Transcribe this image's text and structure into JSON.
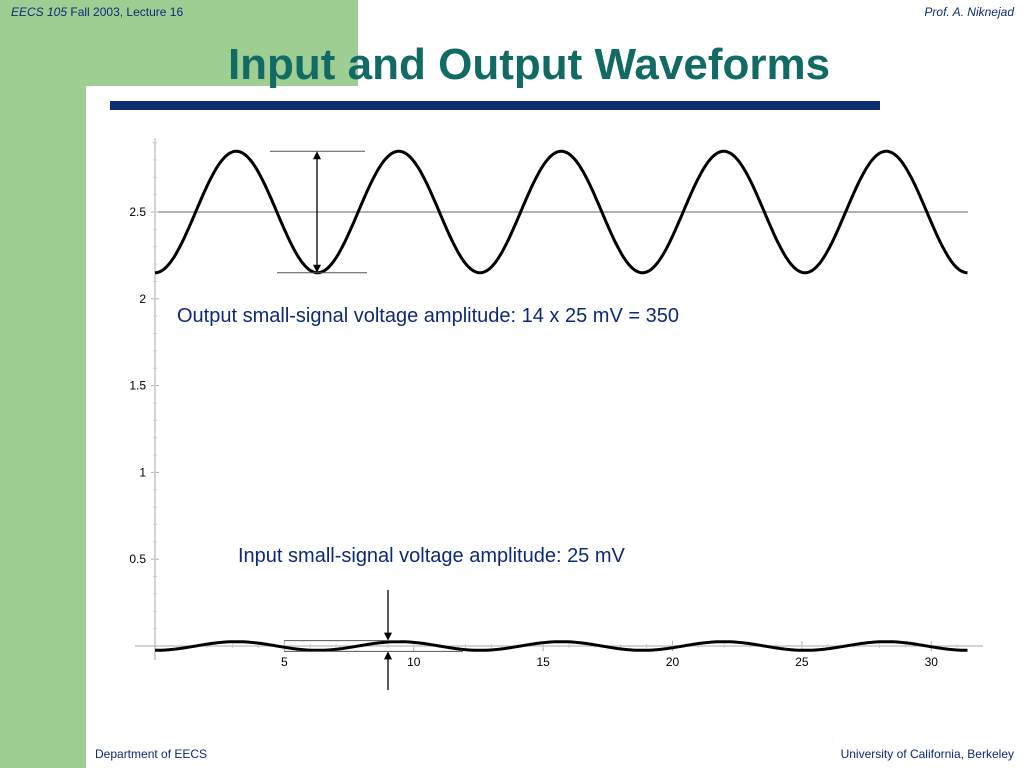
{
  "header": {
    "course": "EECS 105",
    "term": "Fall 2003, Lecture 16",
    "author": "Prof. A. Niknejad"
  },
  "slide": {
    "title": "Input and Output Waveforms",
    "output_annotation": "Output small-signal voltage amplitude:  14 x 25 mV = 350",
    "input_annotation": "Input small-signal voltage amplitude:  25 mV"
  },
  "footer": {
    "left": "Department of EECS",
    "right": "University of California, Berkeley"
  },
  "colors": {
    "green": "#9fce93",
    "title": "#116b64",
    "navy": "#0e2d72"
  },
  "chart_data": {
    "type": "line",
    "xlim": [
      0,
      32
    ],
    "ylim": [
      -0.03,
      2.95
    ],
    "x_ticks": [
      5,
      10,
      15,
      20,
      25,
      30
    ],
    "y_ticks": [
      0.5,
      1,
      1.5,
      2,
      2.5
    ],
    "grid": false,
    "series": [
      {
        "kind": "sinusoid",
        "offset": 2.5,
        "amplitude": 0.35,
        "period": 6.28,
        "x_start": 0,
        "x_end": 31.4
      },
      {
        "kind": "sinusoid",
        "offset": 0,
        "amplitude": 0.025,
        "period": 6.28,
        "x_start": 0,
        "x_end": 31.4
      }
    ],
    "reference_lines": [
      2.5,
      0
    ]
  }
}
